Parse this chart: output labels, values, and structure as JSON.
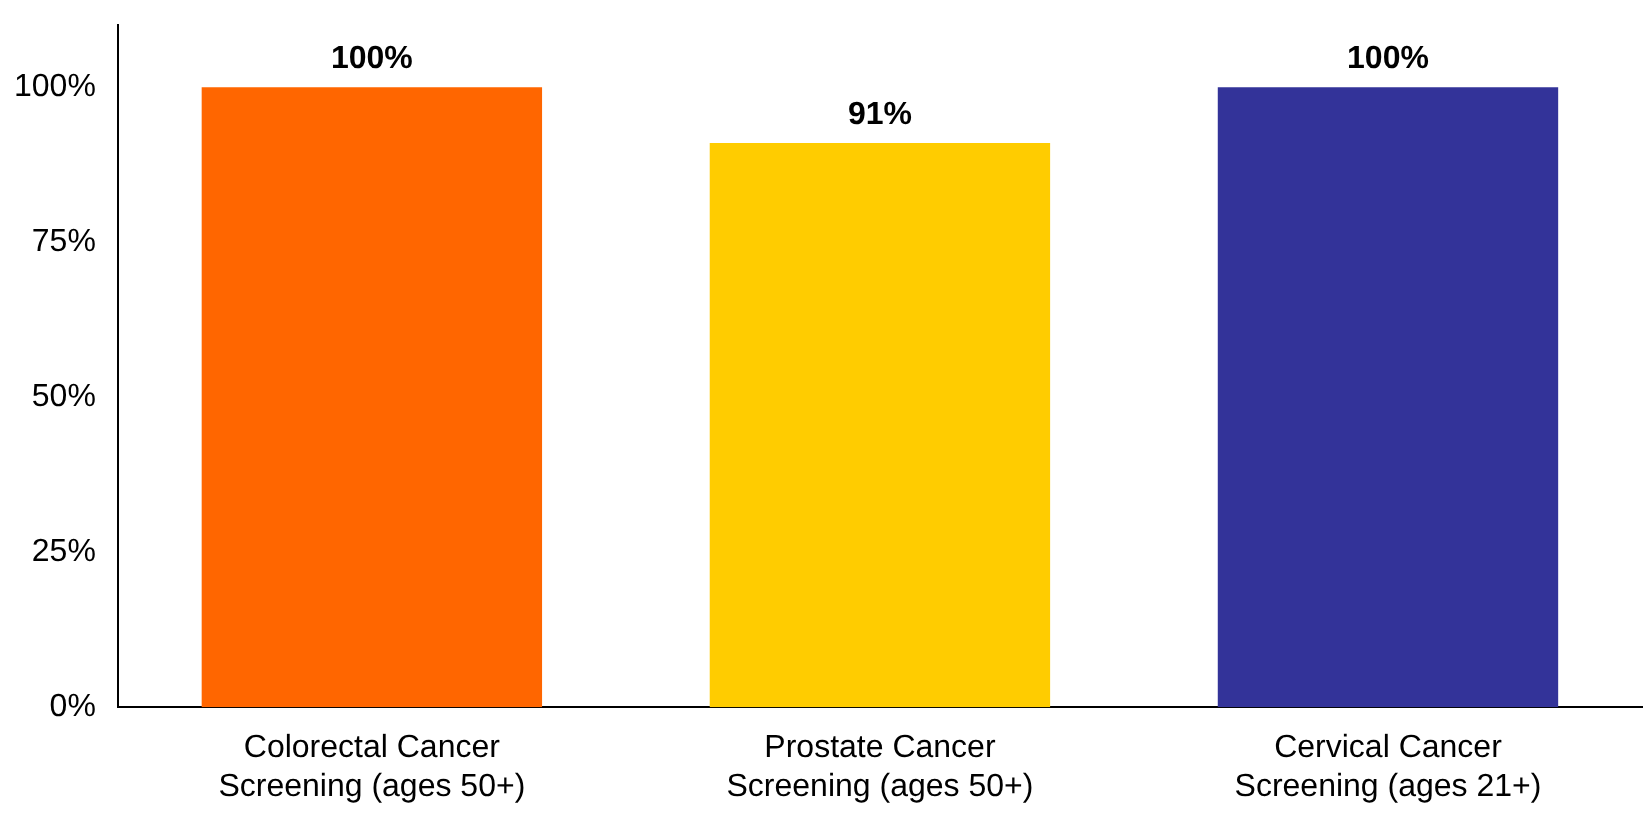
{
  "chart_data": {
    "type": "bar",
    "categories": [
      "Colorectal Cancer Screening (ages 50+)",
      "Prostate Cancer Screening (ages 50+)",
      "Cervical Cancer Screening (ages 21+)"
    ],
    "values": [
      100,
      91,
      100
    ],
    "colors": [
      "#ff6600",
      "#ffcc00",
      "#333399"
    ],
    "value_labels": [
      "100%",
      "91%",
      "100%"
    ],
    "ylim": [
      0,
      110
    ],
    "yticks": [
      {
        "value": 0,
        "label": "0%"
      },
      {
        "value": 25,
        "label": "25%"
      },
      {
        "value": 50,
        "label": "50%"
      },
      {
        "value": 75,
        "label": "75%"
      },
      {
        "value": 100,
        "label": "100%"
      }
    ],
    "grid": false,
    "legend": false
  }
}
